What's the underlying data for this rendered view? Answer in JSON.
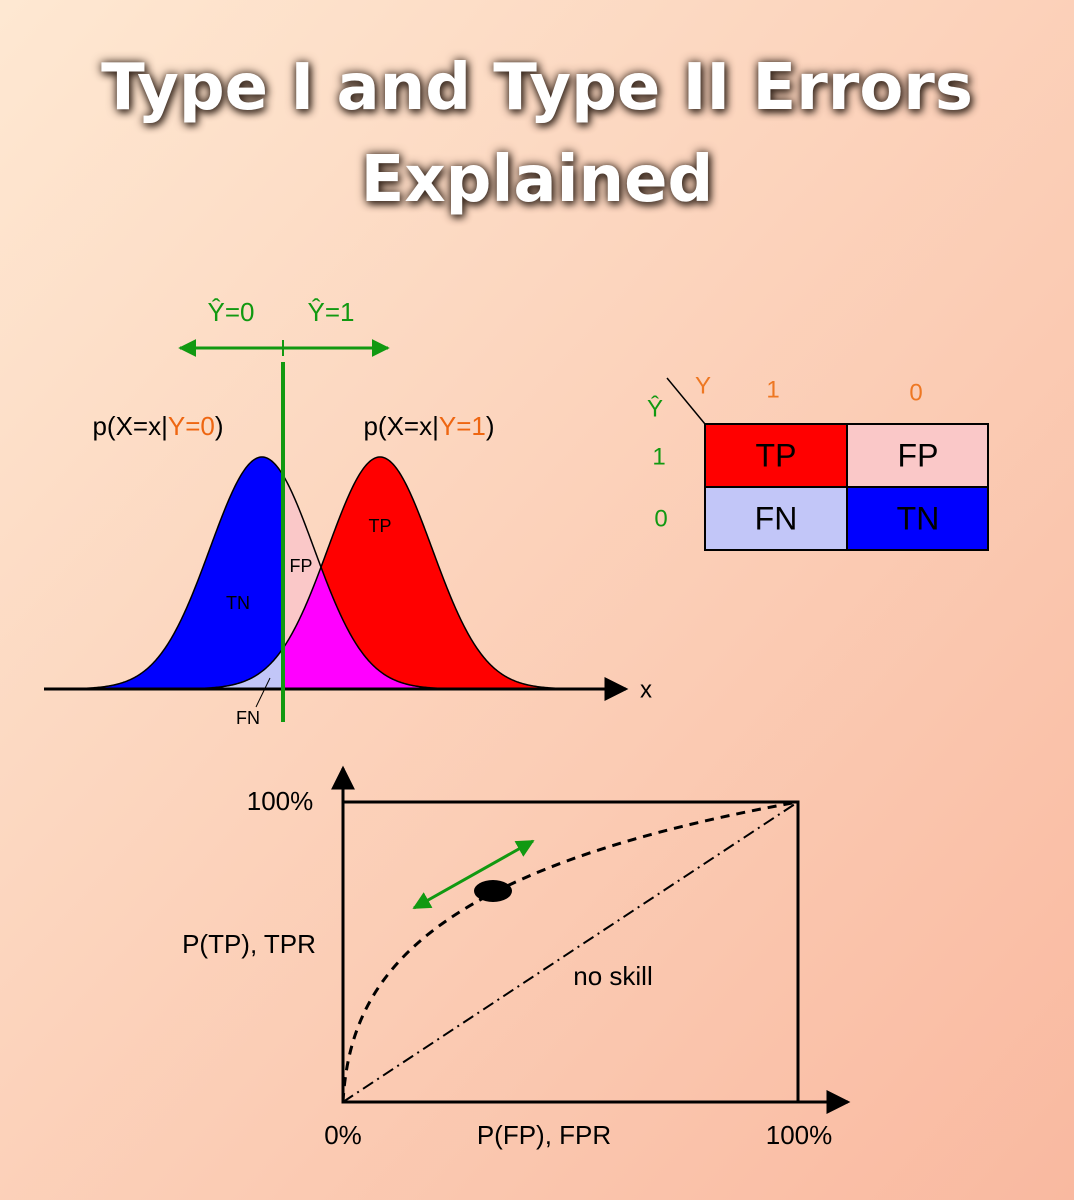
{
  "title": "Type I and Type II Errors Explained",
  "distributions": {
    "decision_labels": [
      "Ŷ=0",
      "Ŷ=1"
    ],
    "curve_labels": [
      {
        "prefix": "p(X=x|",
        "condition": "Y=0",
        "suffix": ")"
      },
      {
        "prefix": "p(X=x|",
        "condition": "Y=1",
        "suffix": ")"
      }
    ],
    "region_labels": {
      "tn": "TN",
      "fp": "FP",
      "tp": "TP",
      "fn": "FN"
    },
    "axis_label": "x"
  },
  "confusion_matrix": {
    "actual_label": "Y",
    "predicted_label": "Ŷ",
    "actual_values": [
      "1",
      "0"
    ],
    "predicted_values": [
      "1",
      "0"
    ],
    "cells": [
      [
        "TP",
        "FP"
      ],
      [
        "FN",
        "TN"
      ]
    ]
  },
  "roc": {
    "y_label": "P(TP), TPR",
    "x_label": "P(FP), FPR",
    "y_max_label": "100%",
    "x_min_label": "0%",
    "x_max_label": "100%",
    "baseline_label": "no skill"
  }
}
